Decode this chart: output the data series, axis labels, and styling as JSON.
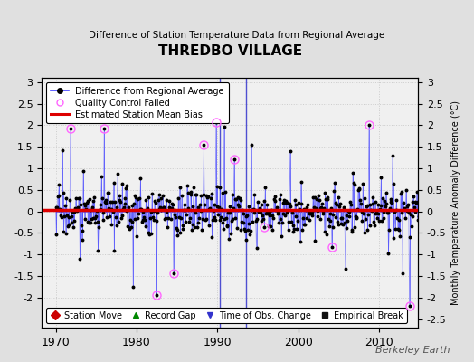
{
  "title": "THREDBO VILLAGE",
  "subtitle": "Difference of Station Temperature Data from Regional Average",
  "ylabel": "Monthly Temperature Anomaly Difference (°C)",
  "ylim": [
    -2.7,
    3.1
  ],
  "yticks_left": [
    -2,
    -1.5,
    -1,
    -0.5,
    0,
    0.5,
    1,
    1.5,
    2,
    2.5,
    3
  ],
  "yticks_right": [
    -2.5,
    -2,
    -1.5,
    -1,
    -0.5,
    0,
    0.5,
    1,
    1.5,
    2,
    2.5,
    3
  ],
  "xlim": [
    1968.3,
    2014.8
  ],
  "xticks": [
    1970,
    1980,
    1990,
    2000,
    2010
  ],
  "mean_bias": 0.04,
  "background_color": "#e0e0e0",
  "plot_bg_color": "#f0f0f0",
  "line_color": "#4444ff",
  "dot_color": "#000000",
  "bias_color": "#dd0000",
  "qc_color": "#ff66ff",
  "station_move_color": "#cc0000",
  "record_gap_color": "#008800",
  "tobs_color": "#3333cc",
  "empirical_color": "#111111",
  "seed": 17,
  "n_years": 45,
  "start_year": 1970,
  "tobs_change_years": [
    1990.3,
    1993.5
  ],
  "watermark": "Berkeley Earth",
  "figsize": [
    5.24,
    4.0
  ],
  "dpi": 100
}
